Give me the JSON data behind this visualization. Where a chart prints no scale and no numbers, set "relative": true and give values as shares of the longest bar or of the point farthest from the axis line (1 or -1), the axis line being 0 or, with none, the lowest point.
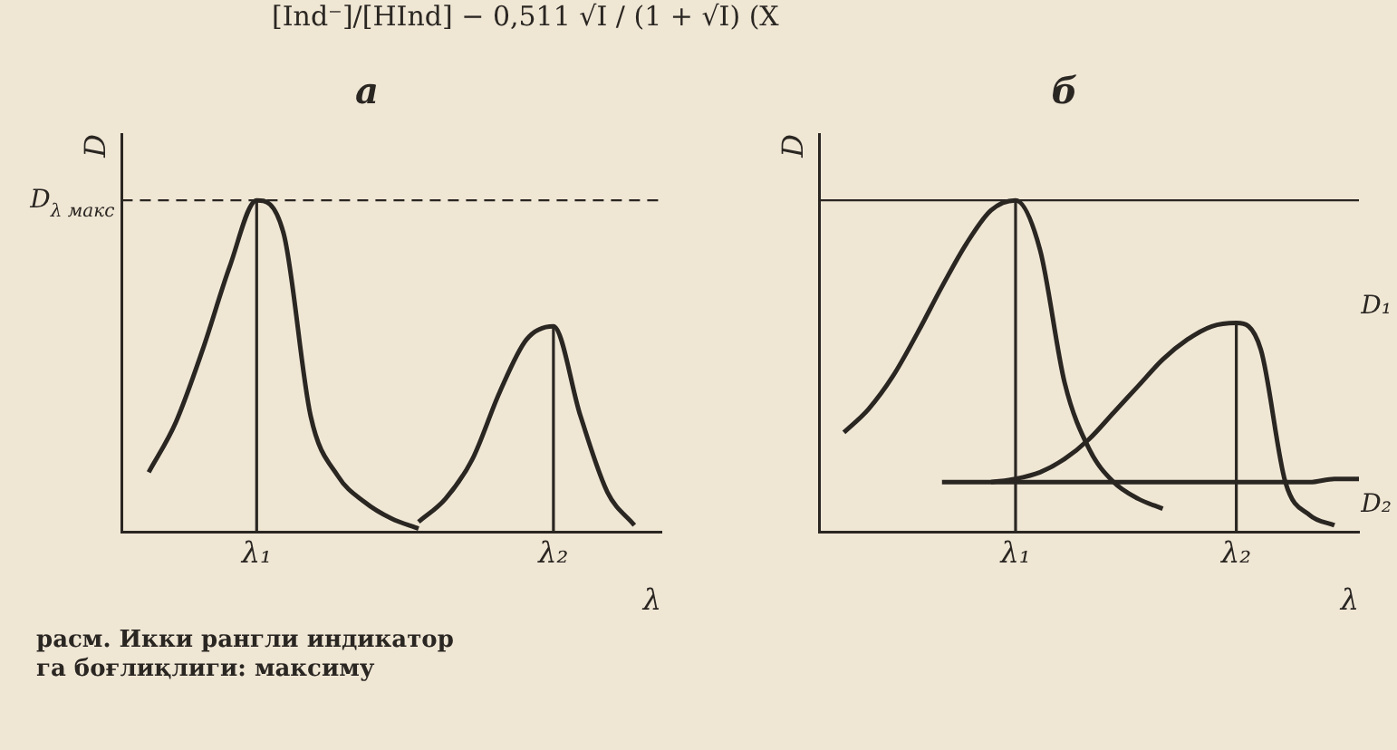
{
  "chart_data": [
    {
      "type": "line",
      "title": "а",
      "xlabel": "λ",
      "ylabel": "D",
      "relative": true,
      "grid": false,
      "marker": "none",
      "line_style": "solid",
      "categories": [
        null,
        null,
        null,
        null,
        null,
        "λ₁",
        null,
        null,
        null,
        null,
        null,
        null,
        null,
        null,
        null,
        null,
        "λ₂",
        null,
        null,
        null,
        null
      ],
      "series": [
        {
          "color": "#2a2622",
          "values": [
            null,
            0.18,
            0.33,
            0.55,
            0.8,
            1,
            0.9,
            0.35,
            0.17,
            0.09,
            0.04,
            0.01,
            null,
            null,
            null,
            null,
            null,
            null,
            null,
            null,
            null
          ]
        },
        {
          "color": "#2a2622",
          "values": [
            null,
            null,
            null,
            null,
            null,
            null,
            null,
            null,
            null,
            null,
            null,
            0.03,
            0.1,
            0.22,
            0.42,
            0.58,
            0.62,
            0.35,
            0.12,
            0.02,
            null
          ]
        }
      ],
      "ref_lines": [
        {
          "axis": "y",
          "value": 1,
          "label": "D$_{λ макс}$",
          "line_style": "dashed"
        },
        {
          "axis": "x",
          "value": "λ₁",
          "label": null
        },
        {
          "axis": "x",
          "value": "λ₂",
          "label": null
        }
      ],
      "annotations": [
        "[Ind⁻]/[HInd] − 0,511 √I / (1 + √I)  (X",
        "расм. Икки рангли индикатор",
        "га боғлиқлиги: максиму"
      ]
    },
    {
      "type": "line",
      "title": "б",
      "xlabel": "λ",
      "ylabel": "D",
      "relative": true,
      "grid": false,
      "marker": "none",
      "line_style": "solid",
      "categories": [
        null,
        null,
        null,
        null,
        null,
        null,
        null,
        null,
        "λ₁",
        null,
        null,
        null,
        null,
        null,
        null,
        null,
        null,
        "λ₂",
        null,
        null,
        null,
        null,
        null
      ],
      "series": [
        {
          "color": "#2a2622",
          "values": [
            null,
            0.3,
            0.37,
            0.47,
            0.6,
            0.74,
            0.87,
            0.97,
            1,
            0.85,
            0.45,
            0.25,
            0.15,
            0.1,
            0.07,
            null,
            null,
            null,
            null,
            null,
            null,
            null,
            null
          ]
        },
        {
          "color": "#2a2622",
          "values": [
            null,
            null,
            null,
            null,
            null,
            null,
            null,
            0.15,
            0.16,
            0.18,
            0.22,
            0.28,
            0.36,
            0.44,
            0.52,
            0.58,
            0.62,
            0.63,
            0.55,
            0.15,
            0.05,
            0.02,
            null
          ]
        },
        {
          "color": "#2a2622",
          "values": [
            null,
            null,
            null,
            null,
            null,
            0.15,
            0.15,
            0.15,
            0.15,
            0.15,
            0.15,
            0.15,
            0.15,
            0.15,
            0.15,
            0.15,
            0.15,
            0.15,
            0.15,
            0.15,
            0.15,
            0.16,
            0.16
          ]
        }
      ],
      "ref_lines": [
        {
          "axis": "y",
          "value": 1,
          "label": null,
          "line_style": "solid"
        },
        {
          "axis": "x",
          "value": "λ₁",
          "label": null
        },
        {
          "axis": "x",
          "value": "λ₂",
          "label": null
        }
      ],
      "annotations": [
        "D₁",
        "D₂"
      ]
    }
  ]
}
